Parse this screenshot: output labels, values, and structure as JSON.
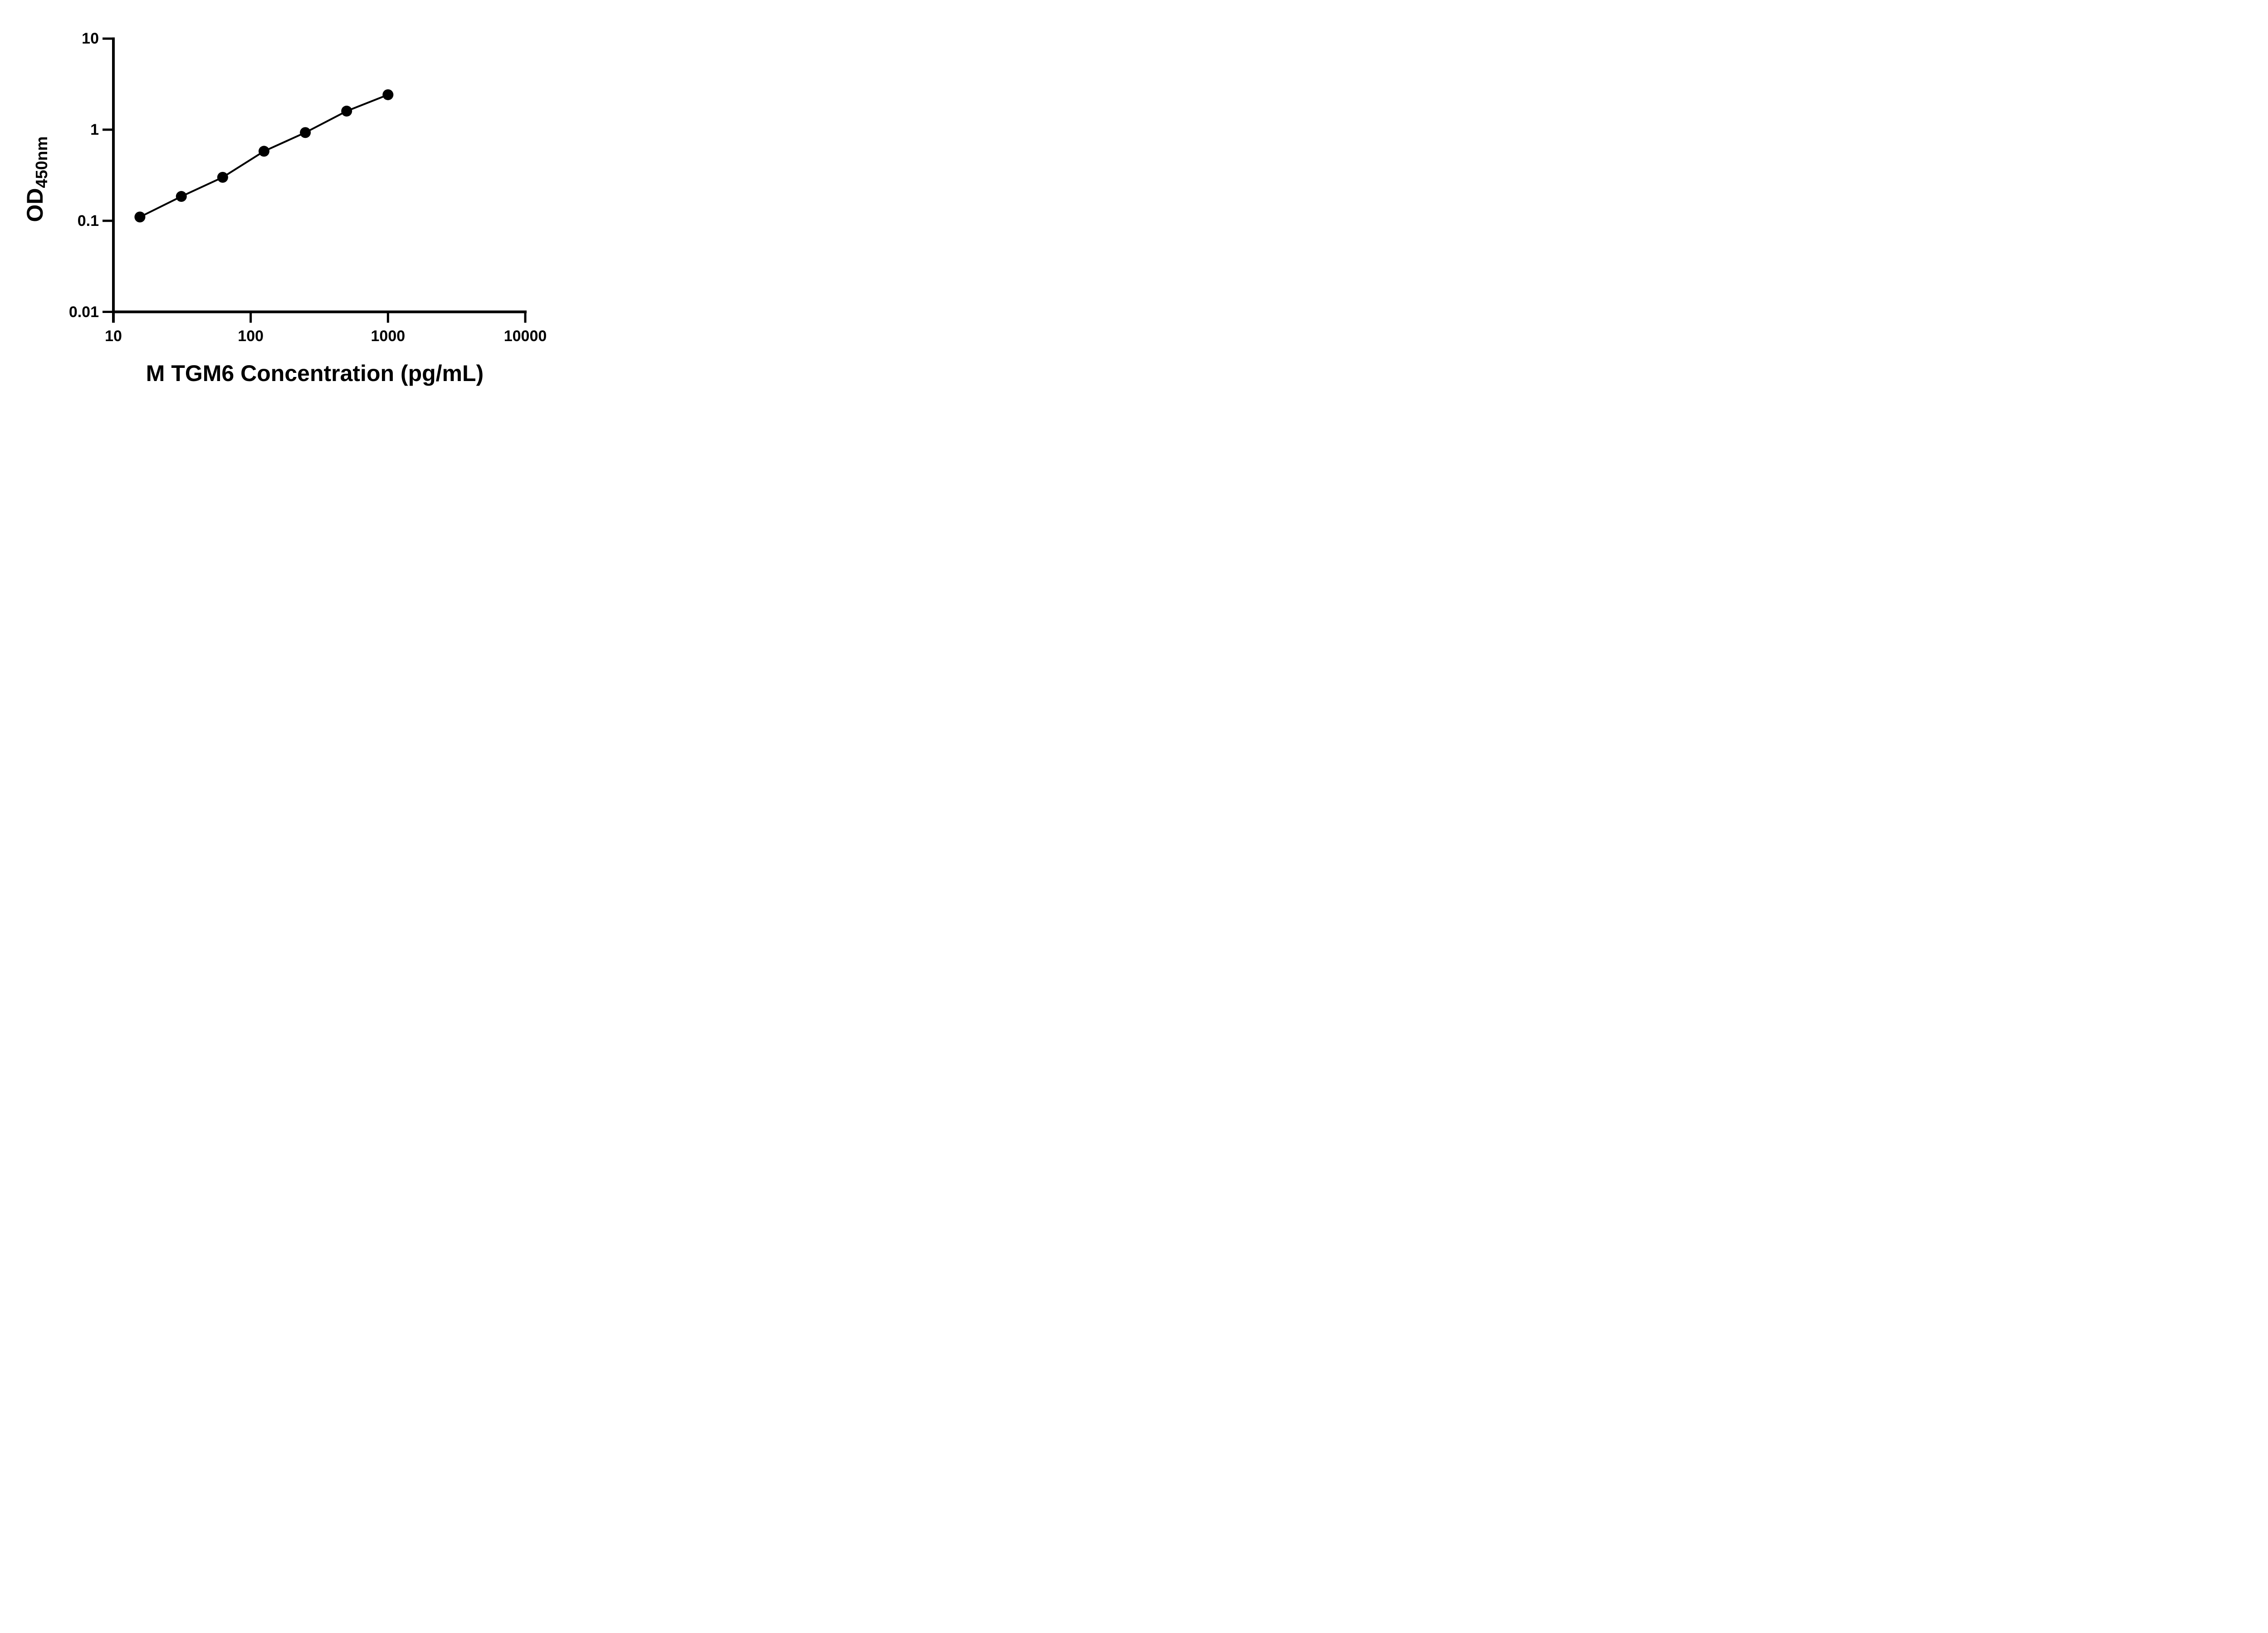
{
  "figure": {
    "background_color": "#ffffff",
    "ink_color": "#000000"
  },
  "chart_data": {
    "type": "line",
    "title": "",
    "xlabel": "M TGM6 Concentration (pg/mL)",
    "ylabel_main": "OD",
    "ylabel_sub": "450nm",
    "x_scale": "log10",
    "y_scale": "log10",
    "xlim": [
      10,
      10000
    ],
    "ylim": [
      0.01,
      10
    ],
    "grid": false,
    "legend": false,
    "x_ticks": [
      10,
      100,
      1000,
      10000
    ],
    "x_tick_labels": [
      "10",
      "100",
      "1000",
      "10000"
    ],
    "y_ticks": [
      10,
      1,
      0.1,
      0.01
    ],
    "y_tick_labels": [
      "10",
      "1",
      "0.1",
      "0.01"
    ],
    "series": [
      {
        "marker": "filled-circle",
        "color": "#000000",
        "points": [
          {
            "x": 15.6,
            "y": 0.11
          },
          {
            "x": 31.25,
            "y": 0.185
          },
          {
            "x": 62.5,
            "y": 0.3
          },
          {
            "x": 125,
            "y": 0.58
          },
          {
            "x": 250,
            "y": 0.93
          },
          {
            "x": 500,
            "y": 1.6
          },
          {
            "x": 1000,
            "y": 2.42
          }
        ]
      }
    ]
  }
}
